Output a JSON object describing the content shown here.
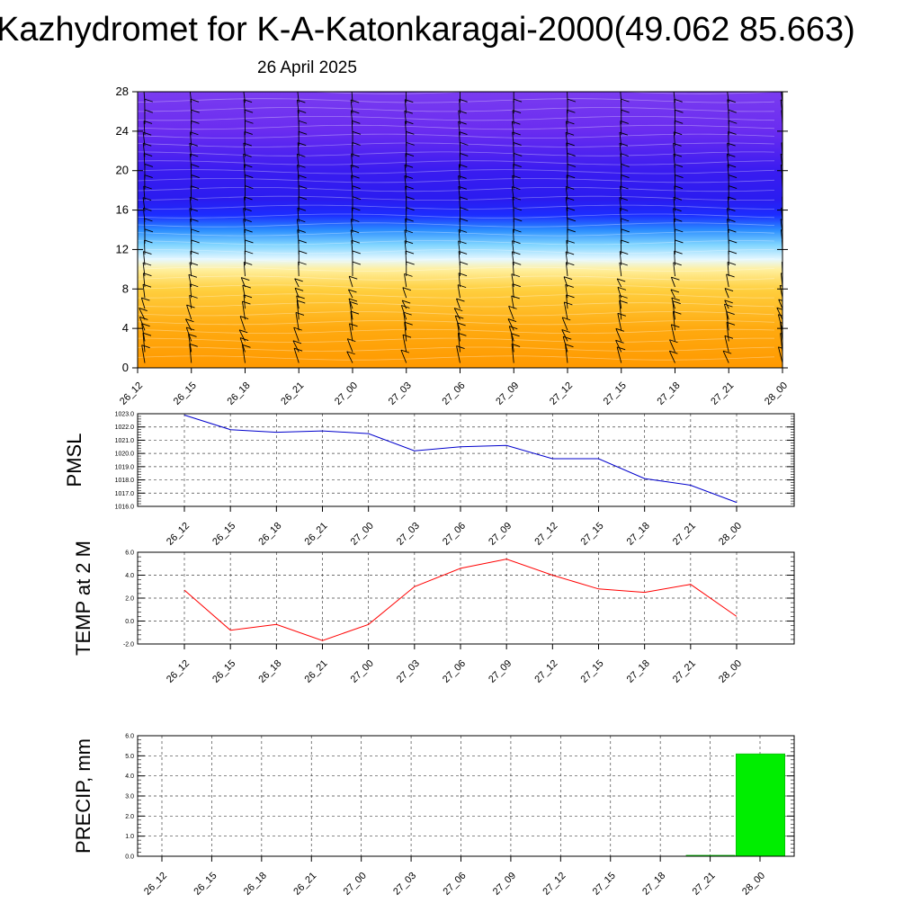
{
  "title": "Kazhydromet for K-A-Katonkaragai-2000(49.062 85.663)",
  "subtitle": "26 April 2025",
  "colors": {
    "pmsl_line": "#0000cc",
    "temp_line": "#ff0000",
    "precip_bar": "#00ee00",
    "barb": "#000000"
  },
  "chart_data": [
    {
      "type": "heatmap",
      "name": "vertical-cross-section",
      "x": [
        "26_12",
        "26_15",
        "26_18",
        "26_21",
        "27_00",
        "27_03",
        "27_06",
        "27_09",
        "27_12",
        "27_15",
        "27_18",
        "27_21",
        "28_00"
      ],
      "yticks": [
        "0",
        "4",
        "8",
        "12",
        "16",
        "20",
        "24",
        "28"
      ],
      "ylim": [
        0,
        28
      ],
      "color_levels": [
        {
          "y": 0,
          "color": "#ff9900"
        },
        {
          "y": 4,
          "color": "#ffaa10"
        },
        {
          "y": 8,
          "color": "#ffd040"
        },
        {
          "y": 10,
          "color": "#fff0a0"
        },
        {
          "y": 11,
          "color": "#e6f8ff"
        },
        {
          "y": 12.5,
          "color": "#7fd4ff"
        },
        {
          "y": 14,
          "color": "#2a8cff"
        },
        {
          "y": 15.5,
          "color": "#1c2cff"
        },
        {
          "y": 17,
          "color": "#2a1cf0"
        },
        {
          "y": 20,
          "color": "#3a1cf0"
        },
        {
          "y": 24,
          "color": "#6a2cf0"
        },
        {
          "y": 28,
          "color": "#7a3cf0"
        }
      ]
    },
    {
      "type": "line",
      "name": "pmsl",
      "ylabel": "PMSL",
      "x": [
        "26_12",
        "26_15",
        "26_18",
        "26_21",
        "27_00",
        "27_03",
        "27_06",
        "27_09",
        "27_12",
        "27_15",
        "27_18",
        "27_21",
        "28_00"
      ],
      "values": [
        1022.9,
        1021.8,
        1021.6,
        1021.7,
        1021.5,
        1020.2,
        1020.5,
        1020.6,
        1019.6,
        1019.6,
        1018.1,
        1017.6,
        1016.3
      ],
      "yticks": [
        "1016.0",
        "1017.0",
        "1018.0",
        "1019.0",
        "1020.0",
        "1021.0",
        "1022.0",
        "1023.0"
      ],
      "ylim": [
        1016,
        1023
      ],
      "grid": true
    },
    {
      "type": "line",
      "name": "temp",
      "ylabel": "TEMP at 2 M",
      "x": [
        "26_12",
        "26_15",
        "26_18",
        "26_21",
        "27_00",
        "27_03",
        "27_06",
        "27_09",
        "27_12",
        "27_15",
        "27_18",
        "27_21",
        "28_00"
      ],
      "values": [
        2.7,
        -0.8,
        -0.3,
        -1.7,
        -0.3,
        3.0,
        4.6,
        5.4,
        4.0,
        2.8,
        2.5,
        3.2,
        0.4
      ],
      "yticks": [
        "-2.0",
        "0.0",
        "2.0",
        "4.0",
        "6.0"
      ],
      "ylim": [
        -2,
        6
      ],
      "grid": true
    },
    {
      "type": "bar",
      "name": "precip",
      "ylabel": "PRECIP, mm",
      "x": [
        "26_12",
        "26_15",
        "26_18",
        "26_21",
        "27_00",
        "27_03",
        "27_06",
        "27_09",
        "27_12",
        "27_15",
        "27_18",
        "27_21",
        "28_00"
      ],
      "values": [
        0,
        0,
        0,
        0,
        0,
        0,
        0,
        0,
        0,
        0,
        0,
        0.05,
        5.1
      ],
      "yticks": [
        "0.0",
        "1.0",
        "2.0",
        "3.0",
        "4.0",
        "5.0",
        "6.0"
      ],
      "ylim": [
        0,
        6
      ],
      "grid": true
    }
  ]
}
